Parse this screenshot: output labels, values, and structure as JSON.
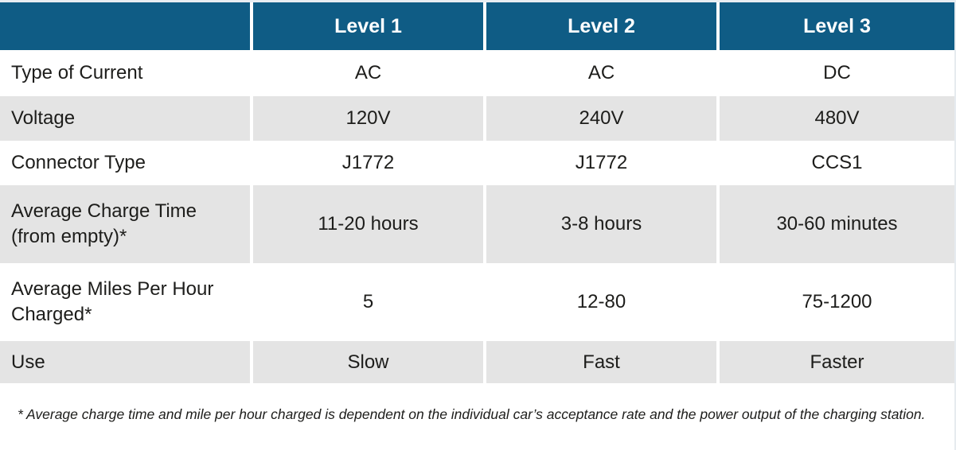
{
  "colors": {
    "header_bg": "#0f5c85",
    "header_text": "#ffffff",
    "shaded_row_bg": "#e4e4e4",
    "plain_row_bg": "#ffffff",
    "body_text": "#1d1d1b"
  },
  "table": {
    "columns": [
      "",
      "Level 1",
      "Level 2",
      "Level 3"
    ],
    "rows": [
      {
        "label": "Type of Current",
        "values": [
          "AC",
          "AC",
          "DC"
        ]
      },
      {
        "label": "Voltage",
        "values": [
          "120V",
          "240V",
          "480V"
        ]
      },
      {
        "label": "Connector Type",
        "values": [
          "J1772",
          "J1772",
          "CCS1"
        ]
      },
      {
        "label": "Average Charge Time (from empty)*",
        "values": [
          "11-20 hours",
          "3-8 hours",
          "30-60 minutes"
        ]
      },
      {
        "label": "Average Miles Per Hour Charged*",
        "values": [
          "5",
          "12-80",
          "75-1200"
        ]
      },
      {
        "label": "Use",
        "values": [
          "Slow",
          "Fast",
          "Faster"
        ]
      }
    ]
  },
  "footnote": "* Average charge time and mile per hour charged is dependent on the individual car’s acceptance rate and the power output of the charging station.",
  "chart_data": {
    "type": "table",
    "title": "",
    "columns": [
      "",
      "Level 1",
      "Level 2",
      "Level 3"
    ],
    "rows": [
      [
        "Type of Current",
        "AC",
        "AC",
        "DC"
      ],
      [
        "Voltage",
        "120V",
        "240V",
        "480V"
      ],
      [
        "Connector Type",
        "J1772",
        "J1772",
        "CCS1"
      ],
      [
        "Average Charge Time (from empty)*",
        "11-20 hours",
        "3-8 hours",
        "30-60 minutes"
      ],
      [
        "Average Miles Per Hour Charged*",
        "5",
        "12-80",
        "75-1200"
      ],
      [
        "Use",
        "Slow",
        "Fast",
        "Faster"
      ]
    ]
  }
}
